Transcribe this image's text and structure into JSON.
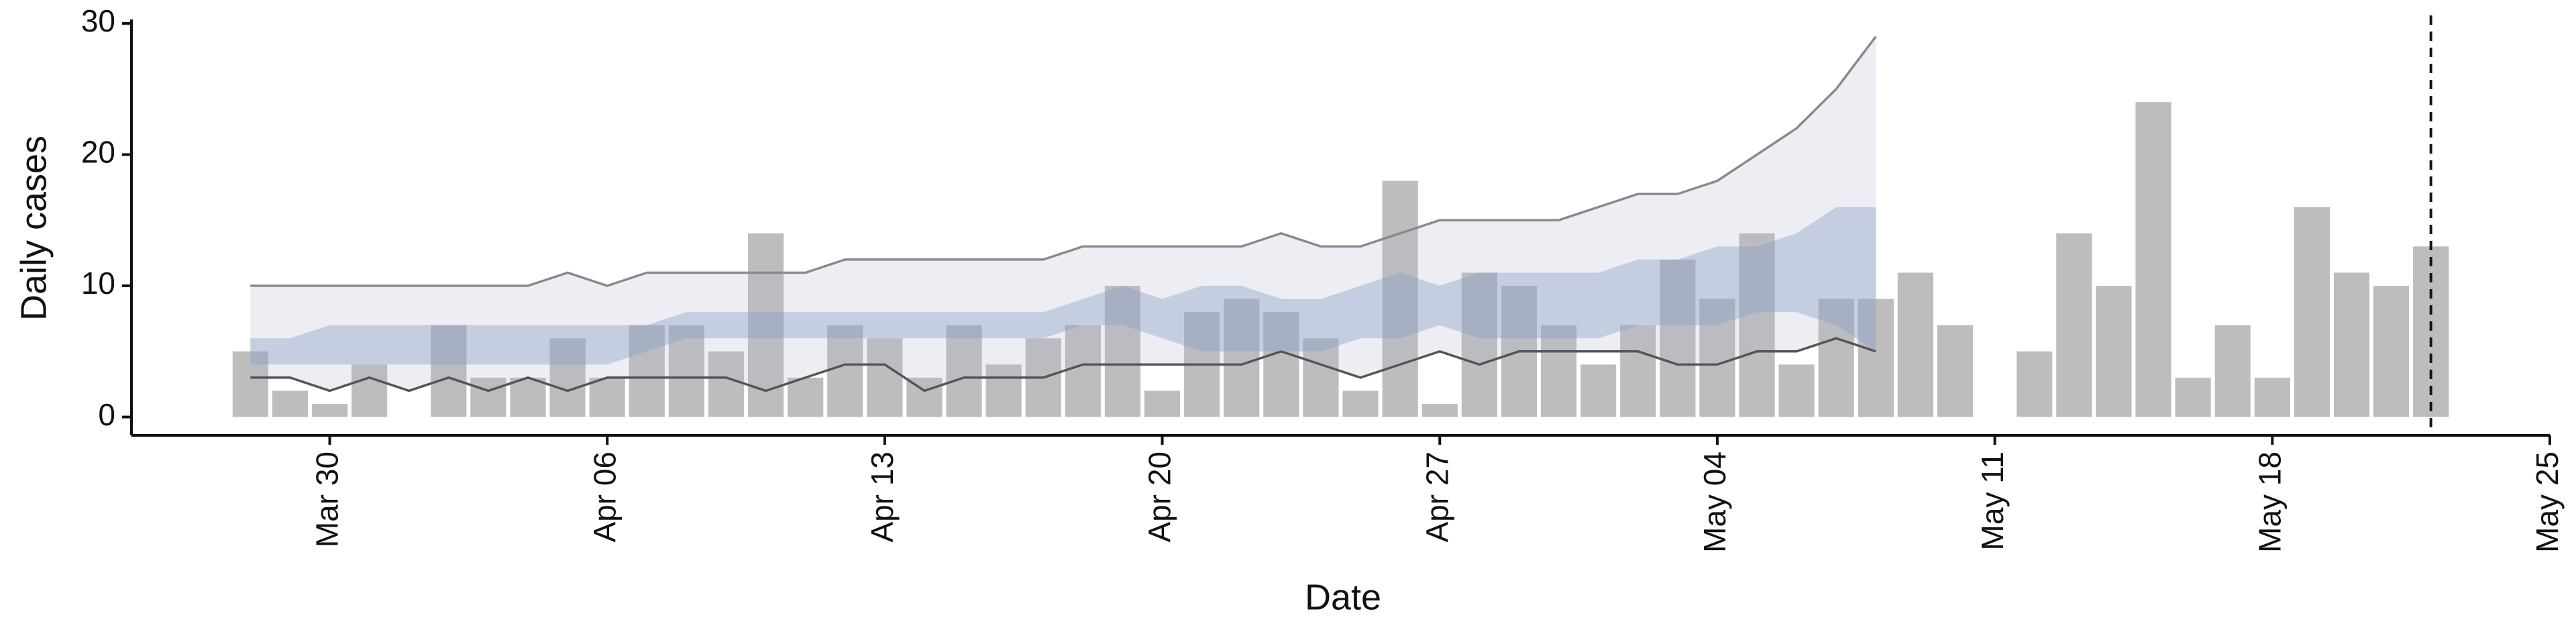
{
  "chart_data": {
    "type": "bar",
    "x_label": "Date",
    "y_label": "Daily cases",
    "x": [
      "Mar 28",
      "Mar 29",
      "Mar 30",
      "Mar 31",
      "Apr 1",
      "Apr 2",
      "Apr 3",
      "Apr 4",
      "Apr 5",
      "Apr 6",
      "Apr 7",
      "Apr 8",
      "Apr 9",
      "Apr 10",
      "Apr 11",
      "Apr 12",
      "Apr 13",
      "Apr 14",
      "Apr 15",
      "Apr 16",
      "Apr 17",
      "Apr 18",
      "Apr 19",
      "Apr 20",
      "Apr 21",
      "Apr 22",
      "Apr 23",
      "Apr 24",
      "Apr 25",
      "Apr 26",
      "Apr 27",
      "Apr 28",
      "Apr 29",
      "Apr 30",
      "May 1",
      "May 2",
      "May 3",
      "May 4",
      "May 5",
      "May 6",
      "May 7",
      "May 8",
      "May 9",
      "May 10",
      "May 11",
      "May 12",
      "May 13",
      "May 14",
      "May 15",
      "May 16",
      "May 17",
      "May 18",
      "May 19",
      "May 20",
      "May 21",
      "May 22"
    ],
    "values": [
      5,
      2,
      1,
      4,
      0,
      7,
      3,
      3,
      6,
      3,
      7,
      7,
      5,
      14,
      3,
      7,
      6,
      3,
      7,
      4,
      6,
      7,
      10,
      2,
      8,
      9,
      8,
      6,
      2,
      18,
      1,
      11,
      10,
      7,
      4,
      7,
      12,
      9,
      14,
      4,
      9,
      9,
      11,
      7,
      0,
      5,
      14,
      10,
      24,
      3,
      7,
      3,
      16,
      11,
      10,
      13
    ],
    "color": "#bdbdbd",
    "bands": [
      {
        "color": "#b4bad2",
        "x": [
          "Mar 28",
          "Mar 29",
          "Mar 30",
          "Mar 31",
          "Apr 1",
          "Apr 2",
          "Apr 3",
          "Apr 4",
          "Apr 5",
          "Apr 6",
          "Apr 7",
          "Apr 8",
          "Apr 9",
          "Apr 10",
          "Apr 11",
          "Apr 12",
          "Apr 13",
          "Apr 14",
          "Apr 15",
          "Apr 16",
          "Apr 17",
          "Apr 18",
          "Apr 19",
          "Apr 20",
          "Apr 21",
          "Apr 22",
          "Apr 23",
          "Apr 24",
          "Apr 25",
          "Apr 26",
          "Apr 27",
          "Apr 28",
          "Apr 29",
          "Apr 30",
          "May 1",
          "May 2",
          "May 3",
          "May 4",
          "May 5",
          "May 6",
          "May 7",
          "May 8"
        ],
        "lower": [
          3,
          3,
          2,
          3,
          2,
          3,
          2,
          3,
          2,
          3,
          3,
          3,
          3,
          2,
          3,
          4,
          4,
          2,
          3,
          3,
          3,
          4,
          4,
          4,
          4,
          4,
          5,
          4,
          3,
          4,
          5,
          4,
          5,
          5,
          5,
          5,
          4,
          4,
          5,
          5,
          6,
          5
        ],
        "upper": [
          10,
          10,
          10,
          10,
          10,
          10,
          10,
          10,
          11,
          10,
          11,
          11,
          11,
          11,
          11,
          12,
          12,
          12,
          12,
          12,
          12,
          13,
          13,
          13,
          13,
          13,
          14,
          13,
          13,
          14,
          15,
          15,
          15,
          15,
          16,
          17,
          17,
          18,
          20,
          22,
          25,
          29
        ],
        "edge_colors": [
          "#555555",
          "#8a8a8a"
        ]
      },
      {
        "color": "#8c9bc3",
        "x": [
          "Mar 28",
          "Mar 29",
          "Mar 30",
          "Mar 31",
          "Apr 1",
          "Apr 2",
          "Apr 3",
          "Apr 4",
          "Apr 5",
          "Apr 6",
          "Apr 7",
          "Apr 8",
          "Apr 9",
          "Apr 10",
          "Apr 11",
          "Apr 12",
          "Apr 13",
          "Apr 14",
          "Apr 15",
          "Apr 16",
          "Apr 17",
          "Apr 18",
          "Apr 19",
          "Apr 20",
          "Apr 21",
          "Apr 22",
          "Apr 23",
          "Apr 24",
          "Apr 25",
          "Apr 26",
          "Apr 27",
          "Apr 28",
          "Apr 29",
          "Apr 30",
          "May 1",
          "May 2",
          "May 3",
          "May 4",
          "May 5",
          "May 6",
          "May 7",
          "May 8"
        ],
        "lower": [
          4,
          4,
          4,
          4,
          4,
          4,
          4,
          4,
          4,
          4,
          5,
          6,
          6,
          6,
          6,
          6,
          6,
          6,
          6,
          6,
          6,
          7,
          7,
          6,
          5,
          5,
          5,
          5,
          6,
          6,
          7,
          6,
          6,
          6,
          6,
          7,
          7,
          7,
          8,
          8,
          7,
          5
        ],
        "upper": [
          6,
          6,
          7,
          7,
          7,
          7,
          7,
          7,
          7,
          7,
          7,
          8,
          8,
          8,
          8,
          8,
          8,
          8,
          8,
          8,
          8,
          9,
          10,
          9,
          10,
          10,
          9,
          9,
          10,
          11,
          10,
          11,
          11,
          11,
          11,
          12,
          12,
          13,
          13,
          14,
          16,
          16
        ]
      }
    ],
    "vline": "May 22",
    "xlim": [
      "Mar 25",
      "May 25"
    ],
    "xticks": [
      "Mar 30",
      "Apr 06",
      "Apr 13",
      "Apr 20",
      "Apr 27",
      "May 04",
      "May 11",
      "May 18",
      "May 25"
    ],
    "ylim": [
      -1.4,
      30.3
    ],
    "yticks": [
      0,
      10,
      20,
      30
    ]
  }
}
